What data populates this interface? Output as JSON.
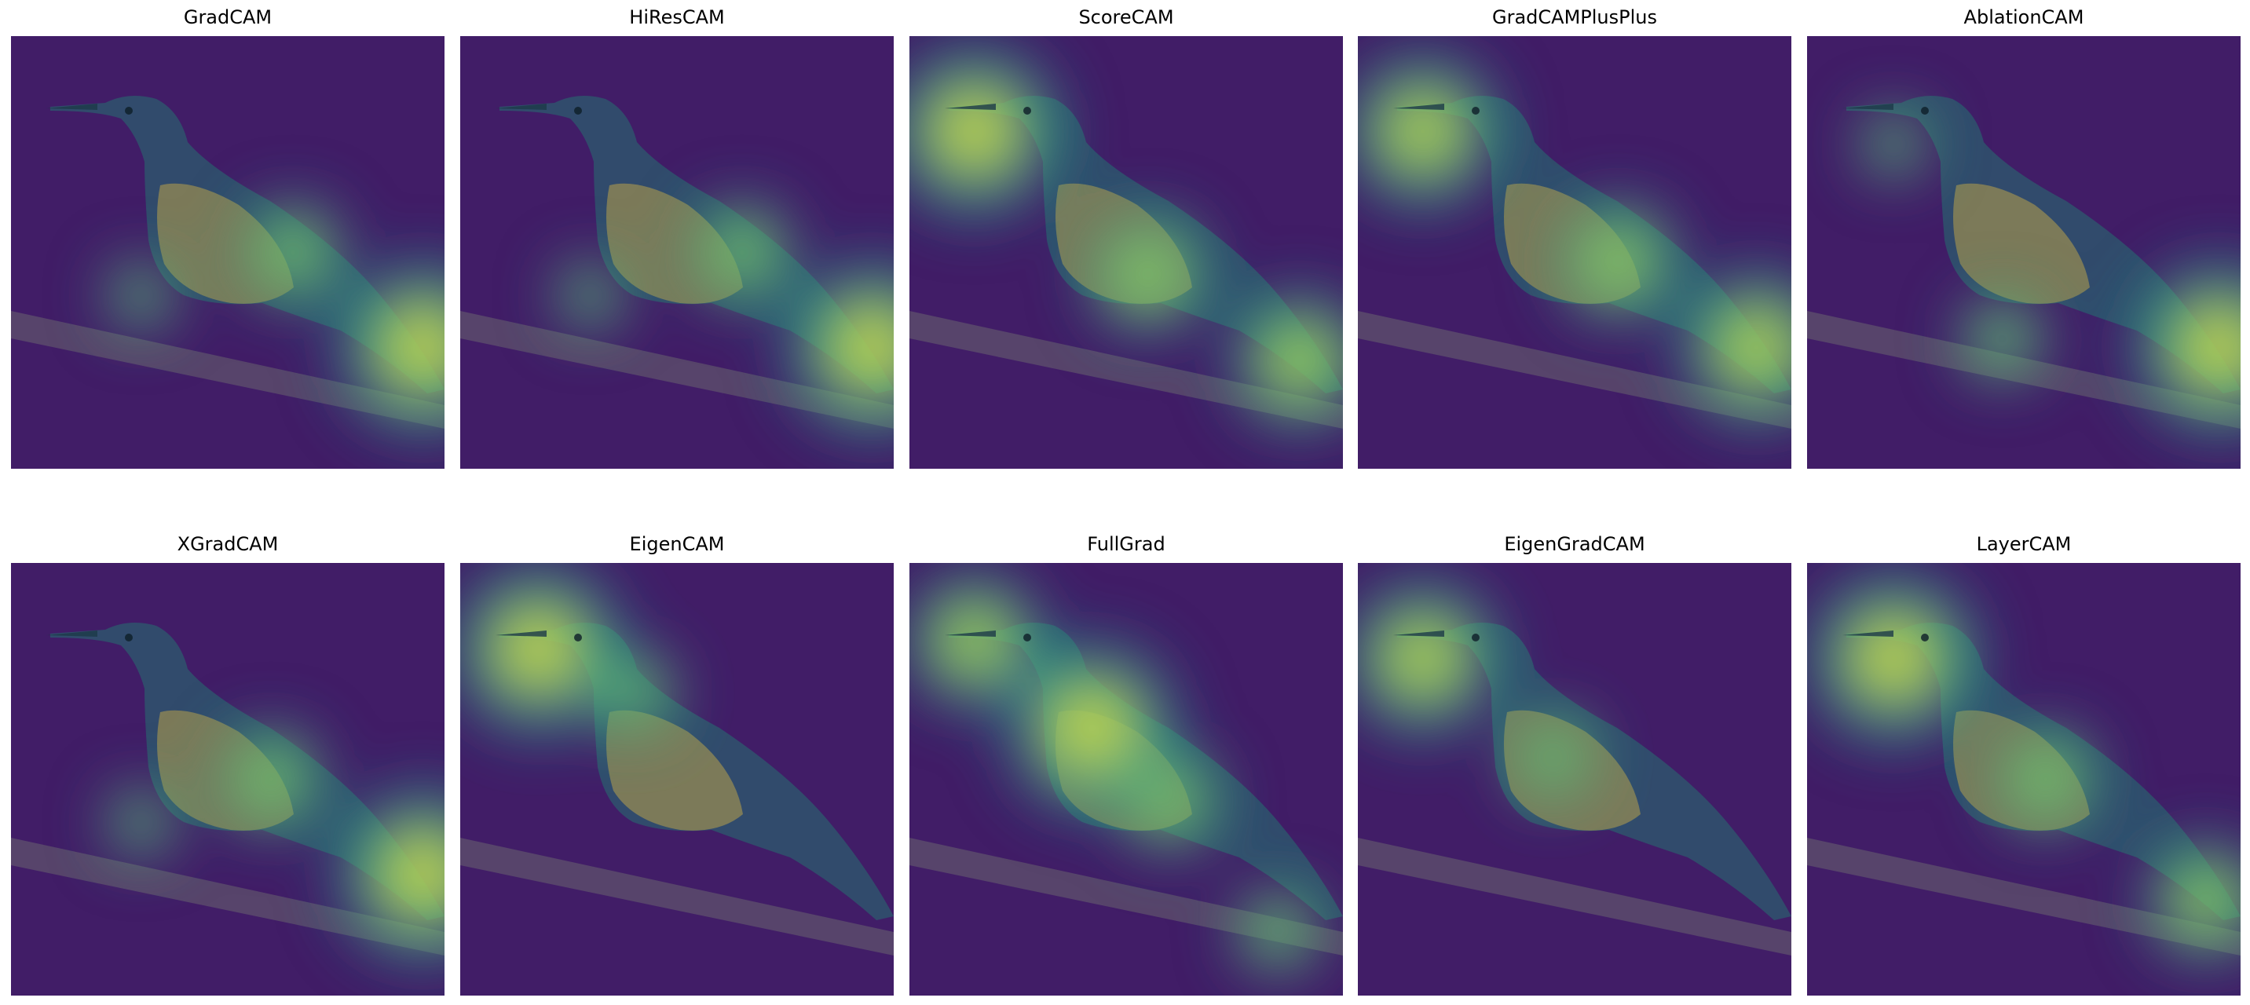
{
  "figure": {
    "panels": [
      {
        "title": "GradCAM",
        "heat": [
          {
            "hx": 0.95,
            "hy": 0.72,
            "s": 1.0
          },
          {
            "hx": 0.65,
            "hy": 0.5,
            "s": 0.6
          },
          {
            "hx": 0.3,
            "hy": 0.6,
            "s": 0.4
          }
        ]
      },
      {
        "title": "HiResCAM",
        "heat": [
          {
            "hx": 0.95,
            "hy": 0.72,
            "s": 1.0
          },
          {
            "hx": 0.65,
            "hy": 0.5,
            "s": 0.6
          },
          {
            "hx": 0.3,
            "hy": 0.6,
            "s": 0.4
          }
        ]
      },
      {
        "title": "ScoreCAM",
        "heat": [
          {
            "hx": 0.15,
            "hy": 0.22,
            "s": 1.0
          },
          {
            "hx": 0.55,
            "hy": 0.55,
            "s": 0.7
          },
          {
            "hx": 0.9,
            "hy": 0.75,
            "s": 0.8
          }
        ]
      },
      {
        "title": "GradCAMPlusPlus",
        "heat": [
          {
            "hx": 0.15,
            "hy": 0.22,
            "s": 0.9
          },
          {
            "hx": 0.6,
            "hy": 0.52,
            "s": 0.7
          },
          {
            "hx": 0.92,
            "hy": 0.72,
            "s": 0.9
          }
        ]
      },
      {
        "title": "AblationCAM",
        "heat": [
          {
            "hx": 0.95,
            "hy": 0.72,
            "s": 1.0
          },
          {
            "hx": 0.45,
            "hy": 0.7,
            "s": 0.5
          },
          {
            "hx": 0.2,
            "hy": 0.25,
            "s": 0.4
          }
        ]
      },
      {
        "title": "XGradCAM",
        "heat": [
          {
            "hx": 0.95,
            "hy": 0.72,
            "s": 1.0
          },
          {
            "hx": 0.6,
            "hy": 0.5,
            "s": 0.6
          },
          {
            "hx": 0.3,
            "hy": 0.6,
            "s": 0.4
          }
        ]
      },
      {
        "title": "EigenCAM",
        "heat": [
          {
            "hx": 0.18,
            "hy": 0.2,
            "s": 1.0
          },
          {
            "hx": 0.4,
            "hy": 0.3,
            "s": 0.5
          }
        ]
      },
      {
        "title": "FullGrad",
        "heat": [
          {
            "hx": 0.42,
            "hy": 0.38,
            "s": 1.0
          },
          {
            "hx": 0.15,
            "hy": 0.18,
            "s": 0.8
          },
          {
            "hx": 0.6,
            "hy": 0.55,
            "s": 0.6
          },
          {
            "hx": 0.85,
            "hy": 0.85,
            "s": 0.5
          }
        ]
      },
      {
        "title": "EigenGradCAM",
        "heat": [
          {
            "hx": 0.15,
            "hy": 0.22,
            "s": 0.9
          },
          {
            "hx": 0.45,
            "hy": 0.45,
            "s": 0.5
          }
        ]
      },
      {
        "title": "LayerCAM",
        "heat": [
          {
            "hx": 0.2,
            "hy": 0.22,
            "s": 1.0
          },
          {
            "hx": 0.55,
            "hy": 0.5,
            "s": 0.6
          },
          {
            "hx": 0.92,
            "hy": 0.78,
            "s": 0.7
          }
        ]
      }
    ],
    "colors": {
      "background": "#ffffff",
      "colormap": [
        "#440154",
        "#3b528b",
        "#21918c",
        "#5ec962",
        "#fde725"
      ],
      "bird_body": "#2c5b6e",
      "bird_belly": "#b9a24a",
      "branch": "#6a6470"
    }
  }
}
